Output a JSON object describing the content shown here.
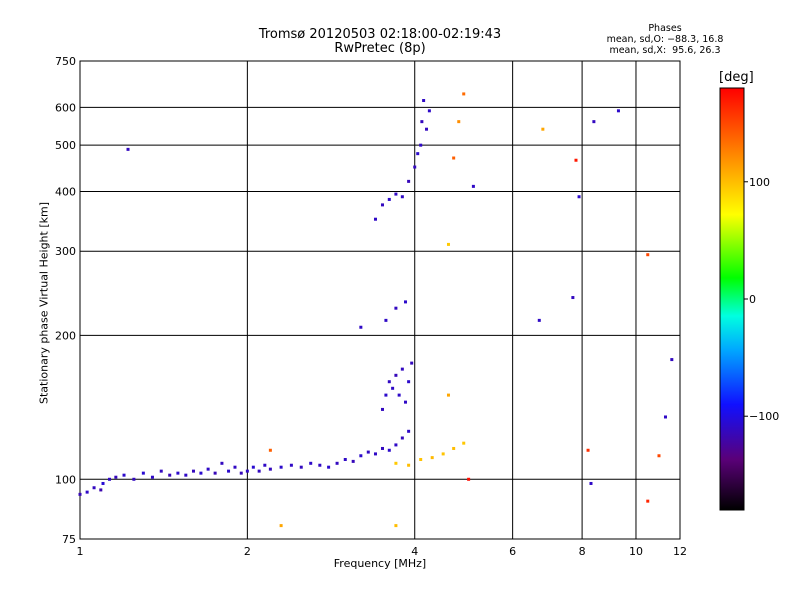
{
  "chart_data": {
    "type": "scatter",
    "title": "Tromsø 20120503 02:18:00-02:19:43",
    "subtitle": "RwPretec (8p)",
    "xlabel": "Frequency [MHz]",
    "ylabel": "Stationary phase Virtual Height [km]",
    "x_scale": "log",
    "y_scale": "log",
    "xlim": [
      1,
      12
    ],
    "ylim": [
      75,
      750
    ],
    "x_ticks": [
      1,
      2,
      4,
      6,
      8,
      10,
      12
    ],
    "y_ticks": [
      75,
      100,
      200,
      300,
      400,
      500,
      600,
      750
    ],
    "grid": true,
    "phases_box": {
      "heading": "Phases",
      "line1": "mean, sd,O: −88.3, 16.8",
      "line2": "mean, sd,X:  95.6, 26.3"
    },
    "colorbar": {
      "title": "[deg]",
      "range": [
        -180,
        180
      ],
      "ticks": [
        100,
        0,
        -100
      ],
      "tick_labels": [
        "100",
        "0",
        "−100"
      ]
    },
    "series": [
      {
        "values": [
          [
            1.0,
            93,
            -115
          ],
          [
            1.03,
            94,
            -110
          ],
          [
            1.06,
            96,
            -112
          ],
          [
            1.09,
            95,
            -118
          ],
          [
            1.1,
            98,
            -105
          ],
          [
            1.13,
            100,
            -110
          ],
          [
            1.16,
            101,
            -114
          ],
          [
            1.2,
            102,
            -108
          ],
          [
            1.25,
            100,
            -112
          ],
          [
            1.3,
            103,
            -106
          ],
          [
            1.35,
            101,
            -110
          ],
          [
            1.4,
            104,
            -112
          ],
          [
            1.45,
            102,
            -115
          ],
          [
            1.5,
            103,
            -108
          ],
          [
            1.55,
            102,
            -110
          ],
          [
            1.6,
            104,
            -113
          ],
          [
            1.65,
            103,
            -107
          ],
          [
            1.7,
            105,
            -110
          ],
          [
            1.75,
            103,
            -115
          ],
          [
            1.8,
            108,
            -112
          ],
          [
            1.85,
            104,
            -108
          ],
          [
            1.9,
            106,
            -111
          ],
          [
            1.95,
            103,
            -114
          ],
          [
            2.0,
            104,
            -110
          ],
          [
            2.05,
            106,
            -106
          ],
          [
            2.1,
            104,
            -112
          ],
          [
            2.15,
            107,
            -110
          ],
          [
            2.2,
            105,
            -113
          ],
          [
            2.3,
            106,
            -108
          ],
          [
            2.4,
            107,
            -110
          ],
          [
            2.5,
            106,
            -112
          ],
          [
            2.6,
            108,
            -109
          ],
          [
            2.7,
            107,
            -111
          ],
          [
            2.8,
            106,
            -107
          ],
          [
            2.9,
            108,
            -112
          ],
          [
            3.0,
            110,
            -110
          ],
          [
            3.1,
            109,
            -114
          ],
          [
            3.2,
            112,
            -108
          ],
          [
            3.3,
            114,
            -111
          ],
          [
            3.4,
            113,
            -110
          ],
          [
            3.5,
            116,
            -112
          ],
          [
            3.6,
            115,
            -108
          ],
          [
            3.7,
            118,
            -110
          ],
          [
            3.8,
            122,
            -113
          ],
          [
            3.9,
            126,
            -110
          ],
          [
            3.5,
            140,
            -112
          ],
          [
            3.55,
            150,
            -108
          ],
          [
            3.6,
            160,
            -111
          ],
          [
            3.65,
            155,
            -110
          ],
          [
            3.7,
            165,
            -114
          ],
          [
            3.75,
            150,
            -109
          ],
          [
            3.8,
            170,
            -112
          ],
          [
            3.85,
            145,
            -110
          ],
          [
            3.9,
            160,
            -108
          ],
          [
            3.95,
            175,
            -113
          ],
          [
            3.4,
            350,
            -110
          ],
          [
            3.5,
            375,
            -112
          ],
          [
            3.6,
            385,
            -108
          ],
          [
            3.7,
            395,
            -111
          ],
          [
            3.8,
            390,
            -110
          ],
          [
            3.9,
            420,
            -114
          ],
          [
            4.0,
            450,
            -112
          ],
          [
            4.05,
            480,
            -108
          ],
          [
            4.1,
            500,
            -110
          ],
          [
            4.12,
            560,
            -113
          ],
          [
            4.15,
            620,
            -110
          ],
          [
            4.2,
            540,
            -112
          ],
          [
            4.25,
            590,
            -109
          ],
          [
            3.55,
            215,
            -110
          ],
          [
            3.7,
            228,
            -112
          ],
          [
            3.85,
            235,
            -108
          ],
          [
            3.2,
            208,
            -110
          ],
          [
            1.22,
            490,
            -112
          ],
          [
            5.1,
            410,
            -110
          ],
          [
            7.7,
            240,
            -112
          ],
          [
            7.9,
            390,
            -108
          ],
          [
            8.3,
            98,
            -110
          ],
          [
            8.4,
            560,
            -112
          ],
          [
            9.3,
            590,
            -108
          ],
          [
            6.7,
            215,
            -110
          ],
          [
            11.6,
            178,
            -112
          ],
          [
            11.3,
            135,
            -110
          ],
          [
            3.7,
            108,
            95
          ],
          [
            3.9,
            107,
            100
          ],
          [
            4.1,
            110,
            98
          ],
          [
            4.3,
            111,
            102
          ],
          [
            4.5,
            113,
            97
          ],
          [
            4.7,
            116,
            100
          ],
          [
            4.9,
            119,
            96
          ],
          [
            4.6,
            150,
            110
          ],
          [
            4.7,
            470,
            140
          ],
          [
            4.8,
            560,
            120
          ],
          [
            4.9,
            640,
            135
          ],
          [
            4.6,
            310,
            95
          ],
          [
            6.8,
            540,
            110
          ],
          [
            5.0,
            100,
            175
          ],
          [
            10.5,
            295,
            150
          ],
          [
            10.5,
            90,
            165
          ],
          [
            7.8,
            465,
            170
          ],
          [
            3.7,
            80,
            100
          ],
          [
            2.3,
            80,
            110
          ],
          [
            2.2,
            115,
            140
          ],
          [
            8.2,
            115,
            160
          ],
          [
            11.0,
            112,
            150
          ]
        ]
      }
    ]
  }
}
